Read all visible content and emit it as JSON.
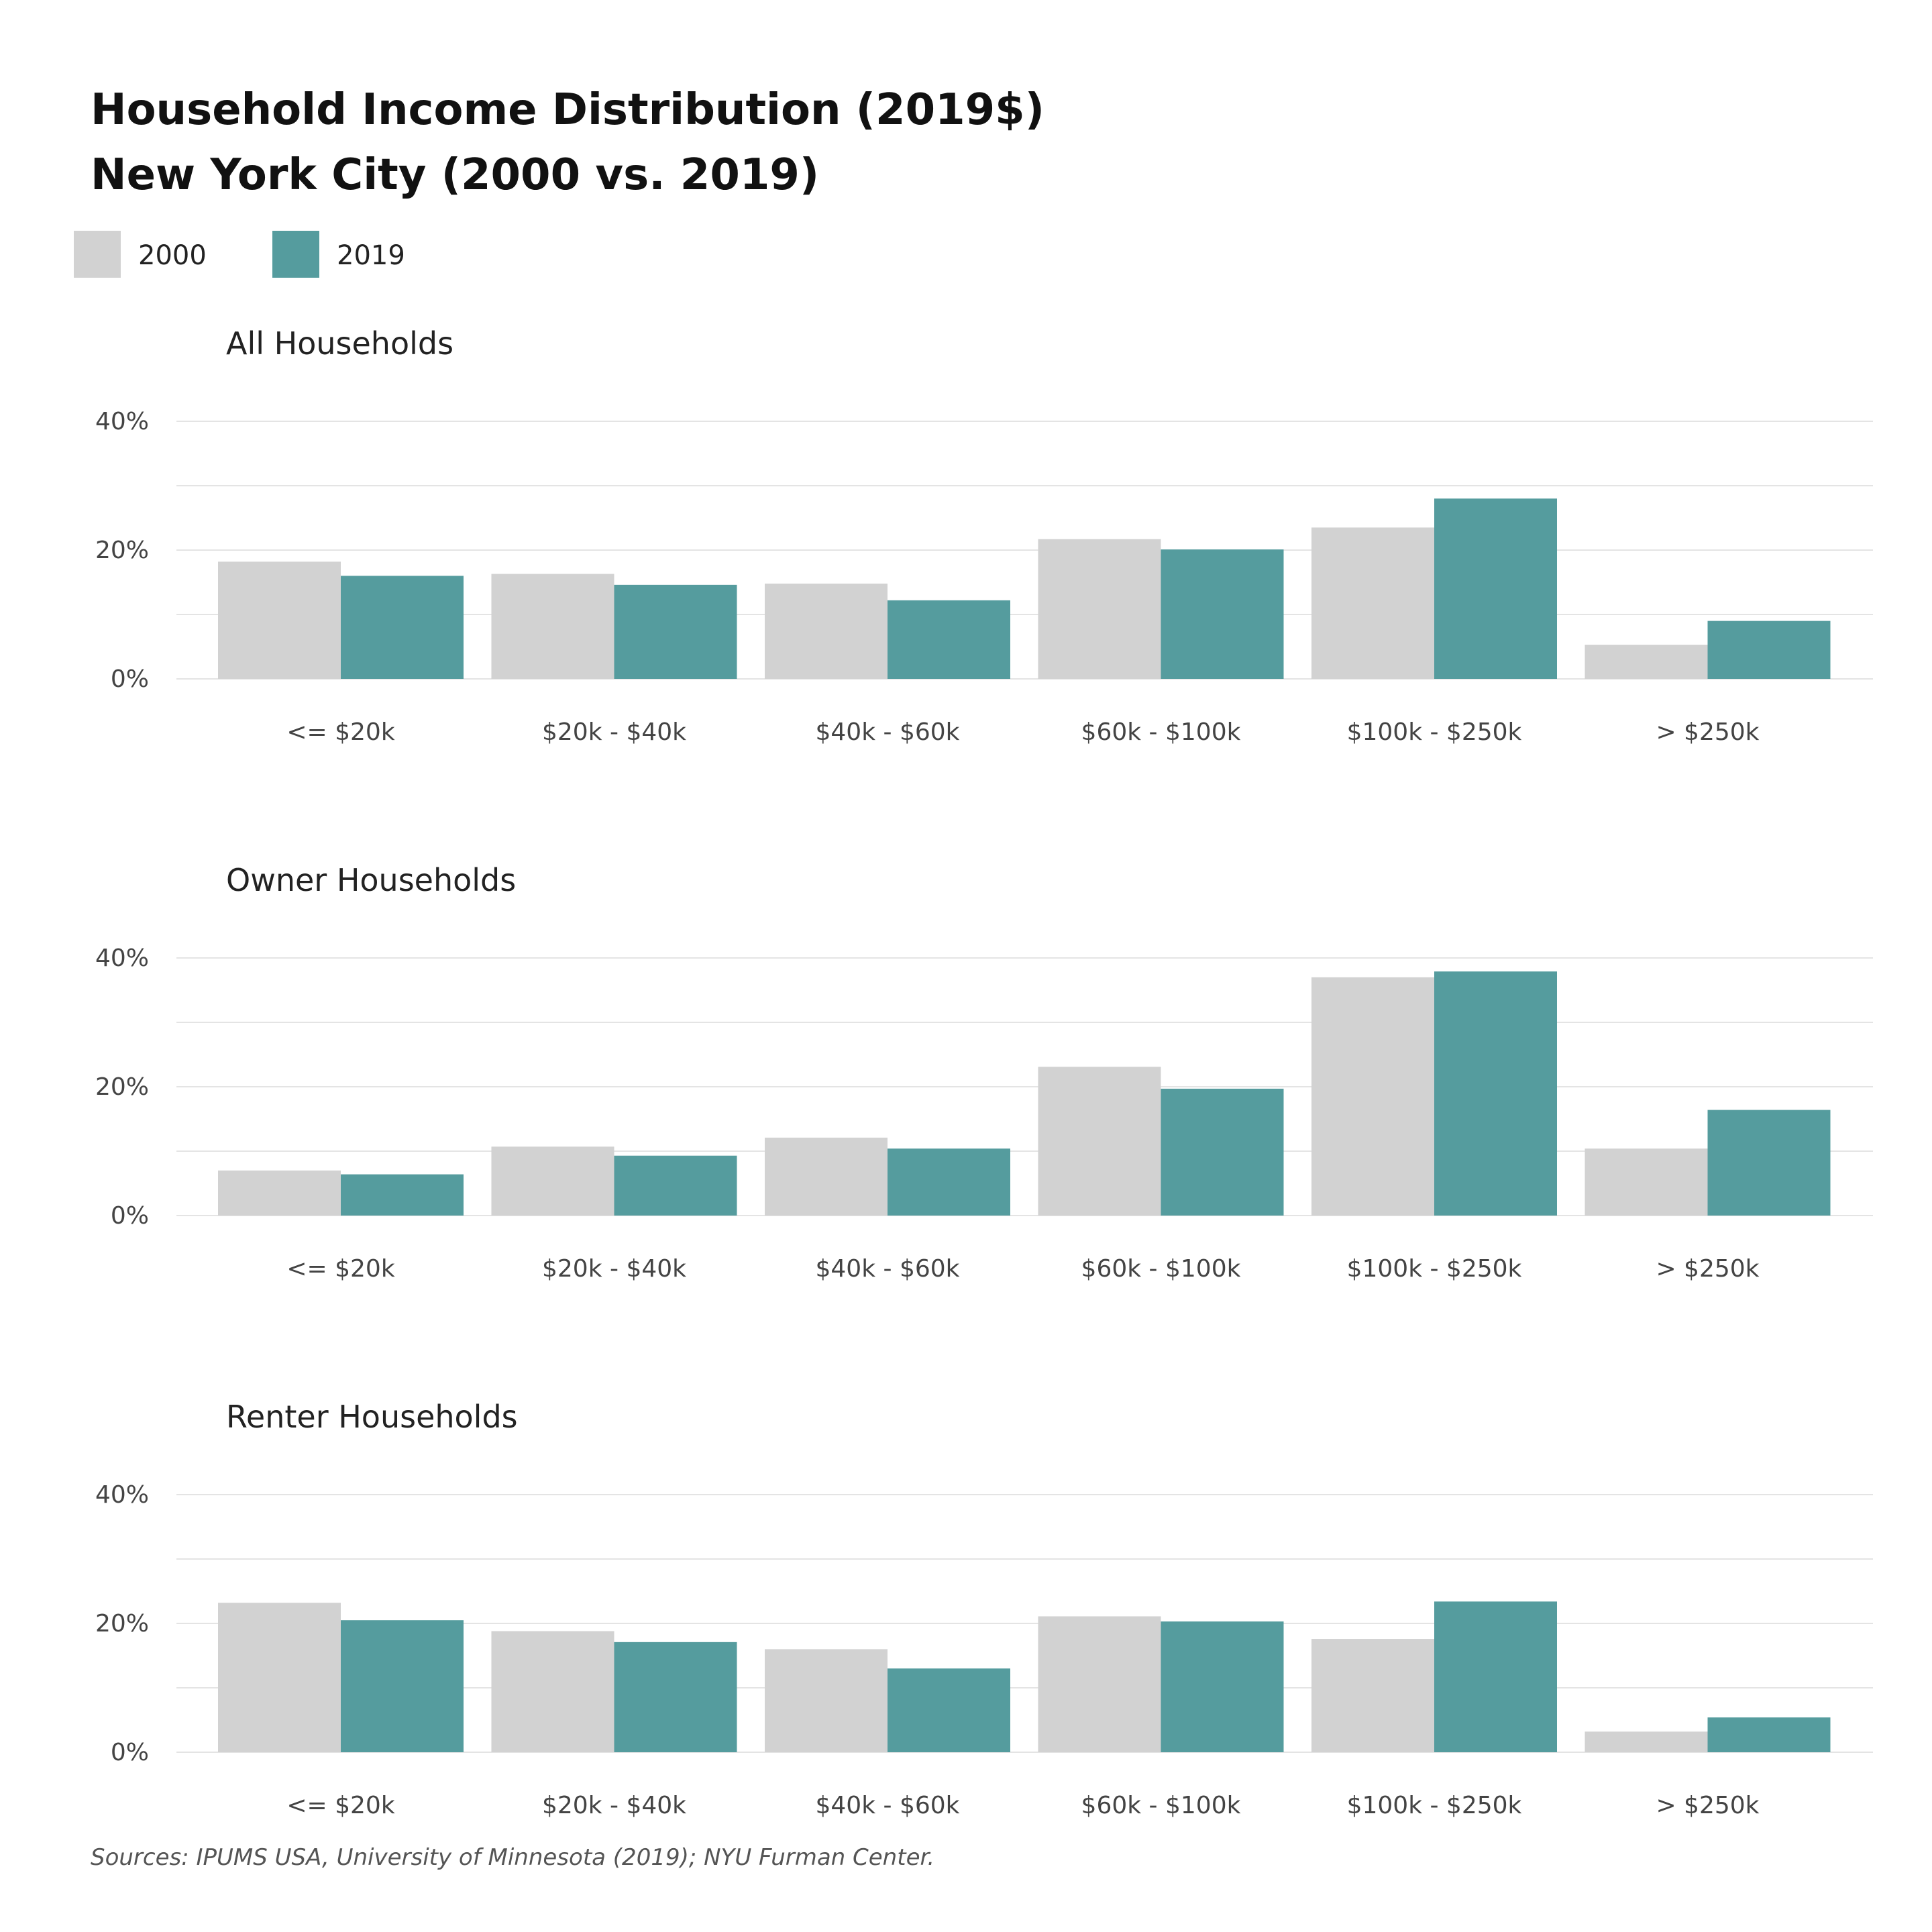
{
  "title_line1": "Household Income Distribution (2019$)",
  "title_line2": "New York City (2000 vs. 2019)",
  "source": "Sources: IPUMS USA, University of Minnesota (2019); NYU Furman Center.",
  "colors": {
    "series_2000": "#d2d2d2",
    "series_2019": "#559c9e",
    "grid": "#e4e4e4"
  },
  "legend": [
    {
      "name": "2000",
      "color": "#d2d2d2"
    },
    {
      "name": "2019",
      "color": "#559c9e"
    }
  ],
  "chart_data": [
    {
      "type": "bar",
      "title": "All Households",
      "categories": [
        "<= $20k",
        "$20k - $40k",
        "$40k - $60k",
        "$60k - $100k",
        "$100k - $250k",
        "> $250k"
      ],
      "series": [
        {
          "name": "2000",
          "values": [
            18.2,
            16.3,
            14.8,
            21.7,
            23.5,
            5.3
          ]
        },
        {
          "name": "2019",
          "values": [
            16.0,
            14.6,
            12.2,
            20.1,
            28.0,
            9.0
          ]
        }
      ],
      "yticks": [
        "0%",
        "20%",
        "40%"
      ],
      "ylim": [
        0,
        40
      ],
      "grid": true
    },
    {
      "type": "bar",
      "title": "Owner Households",
      "categories": [
        "<= $20k",
        "$20k - $40k",
        "$40k - $60k",
        "$60k - $100k",
        "$100k - $250k",
        "> $250k"
      ],
      "series": [
        {
          "name": "2000",
          "values": [
            7.0,
            10.7,
            12.1,
            23.1,
            37.0,
            10.4
          ]
        },
        {
          "name": "2019",
          "values": [
            6.4,
            9.3,
            10.4,
            19.7,
            37.9,
            16.4
          ]
        }
      ],
      "yticks": [
        "0%",
        "20%",
        "40%"
      ],
      "ylim": [
        0,
        40
      ],
      "grid": true
    },
    {
      "type": "bar",
      "title": "Renter Households",
      "categories": [
        "<= $20k",
        "$20k - $40k",
        "$40k - $60k",
        "$60k - $100k",
        "$100k - $250k",
        "> $250k"
      ],
      "series": [
        {
          "name": "2000",
          "values": [
            23.2,
            18.8,
            16.0,
            21.1,
            17.6,
            3.2
          ]
        },
        {
          "name": "2019",
          "values": [
            20.5,
            17.1,
            13.0,
            20.3,
            23.4,
            5.4
          ]
        }
      ],
      "yticks": [
        "0%",
        "20%",
        "40%"
      ],
      "ylim": [
        0,
        40
      ],
      "grid": true
    }
  ]
}
